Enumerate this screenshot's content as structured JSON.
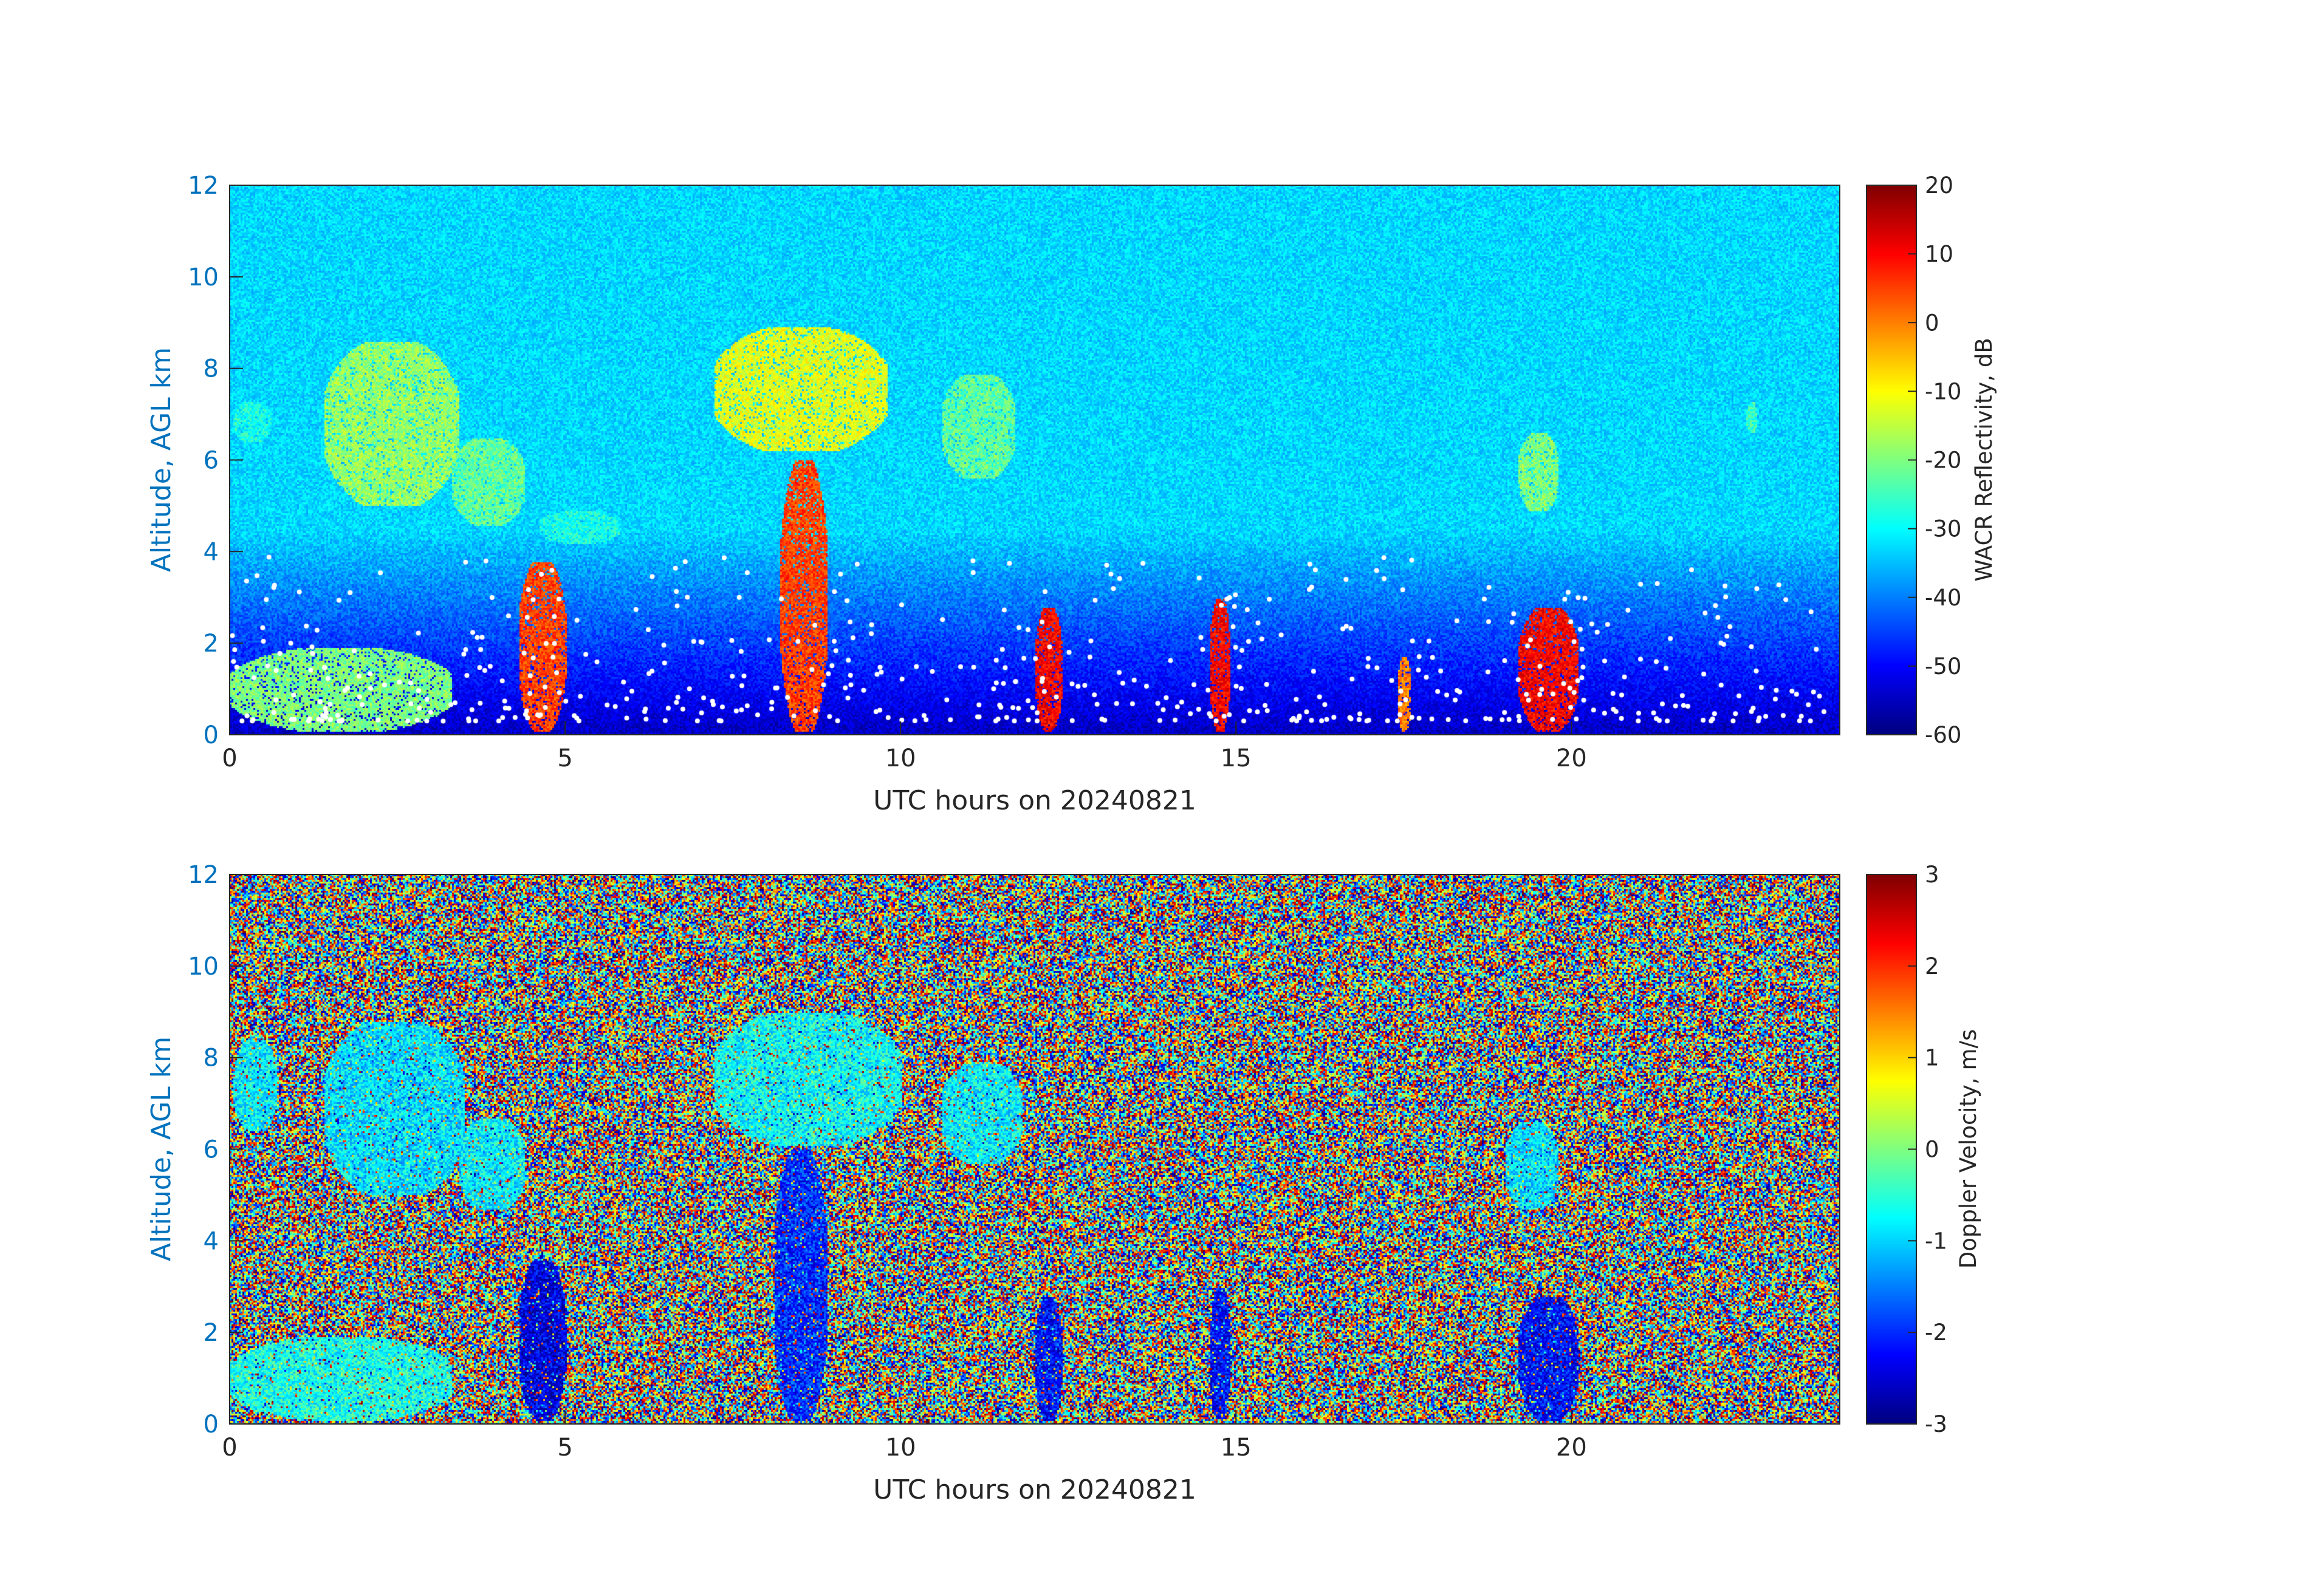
{
  "chart_data": [
    {
      "type": "heatmap",
      "name": "reflectivity",
      "xlabel": "UTC hours on 20240821",
      "ylabel": "Altitude, AGL km",
      "colorbar_label": "WACR Reflectivity, dB",
      "xlim": [
        0,
        24
      ],
      "ylim": [
        0,
        12
      ],
      "clim": [
        -60,
        20
      ],
      "colormap": "jet",
      "x_ticks": [
        0,
        5,
        10,
        15,
        20
      ],
      "y_ticks": [
        0,
        2,
        4,
        6,
        8,
        10,
        12
      ],
      "colorbar_ticks": [
        20,
        10,
        0,
        -10,
        -20,
        -30,
        -40,
        -50,
        -60
      ],
      "background": "noise increasing from about -55 dB near the surface to about -33 dB aloft",
      "white_markers": "cloud base / lidar detections below about 4 km",
      "features": [
        {
          "x": [
            0.05,
            0.6
          ],
          "y": [
            6.4,
            7.3
          ],
          "value": -28
        },
        {
          "x": [
            1.4,
            3.4
          ],
          "y": [
            5.0,
            8.6
          ],
          "value": -18
        },
        {
          "x": [
            3.3,
            4.4
          ],
          "y": [
            4.6,
            6.5
          ],
          "value": -22
        },
        {
          "x": [
            4.6,
            5.8
          ],
          "y": [
            4.2,
            4.9
          ],
          "value": -28
        },
        {
          "x": [
            7.2,
            9.8
          ],
          "y": [
            6.2,
            8.9
          ],
          "value": -12
        },
        {
          "x": [
            10.6,
            11.7
          ],
          "y": [
            5.6,
            7.9
          ],
          "value": -22
        },
        {
          "x": [
            19.2,
            19.8
          ],
          "y": [
            4.9,
            6.6
          ],
          "value": -20
        },
        {
          "x": [
            22.6,
            22.75
          ],
          "y": [
            6.6,
            7.3
          ],
          "value": -25
        },
        {
          "x": [
            0.0,
            3.3
          ],
          "y": [
            0.1,
            1.9
          ],
          "value": -20
        },
        {
          "x": [
            4.3,
            5.0
          ],
          "y": [
            0.1,
            3.8
          ],
          "value": 5
        },
        {
          "x": [
            8.2,
            8.9
          ],
          "y": [
            0.1,
            6.0
          ],
          "value": 5
        },
        {
          "x": [
            12.0,
            12.4
          ],
          "y": [
            0.1,
            2.8
          ],
          "value": 10
        },
        {
          "x": [
            14.6,
            14.9
          ],
          "y": [
            0.1,
            3.0
          ],
          "value": 10
        },
        {
          "x": [
            17.4,
            17.6
          ],
          "y": [
            0.1,
            1.7
          ],
          "value": 0
        },
        {
          "x": [
            19.2,
            20.1
          ],
          "y": [
            0.1,
            2.8
          ],
          "value": 10
        }
      ]
    },
    {
      "type": "heatmap",
      "name": "doppler",
      "xlabel": "UTC hours on 20240821",
      "ylabel": "Altitude, AGL km",
      "colorbar_label": "Doppler Velocity, m/s",
      "xlim": [
        0,
        24
      ],
      "ylim": [
        0,
        12
      ],
      "clim": [
        -3,
        3
      ],
      "colormap": "jet",
      "x_ticks": [
        0,
        5,
        10,
        15,
        20
      ],
      "y_ticks": [
        0,
        2,
        4,
        6,
        8,
        10,
        12
      ],
      "colorbar_ticks": [
        3,
        2,
        1,
        0,
        -1,
        -2,
        -3
      ],
      "background": "random noise spanning -3 to 3 m/s",
      "features": [
        {
          "x": [
            0.05,
            0.7
          ],
          "y": [
            6.4,
            8.4
          ],
          "value": -0.8
        },
        {
          "x": [
            1.4,
            3.5
          ],
          "y": [
            5.0,
            8.8
          ],
          "value": -0.9
        },
        {
          "x": [
            3.4,
            4.4
          ],
          "y": [
            4.7,
            6.7
          ],
          "value": -0.8
        },
        {
          "x": [
            7.2,
            10.0
          ],
          "y": [
            6.1,
            9.0
          ],
          "value": -0.7
        },
        {
          "x": [
            10.6,
            11.8
          ],
          "y": [
            5.7,
            7.9
          ],
          "value": -0.8
        },
        {
          "x": [
            19.0,
            19.8
          ],
          "y": [
            4.7,
            6.6
          ],
          "value": -0.9
        },
        {
          "x": [
            0.0,
            3.3
          ],
          "y": [
            0.1,
            1.9
          ],
          "value": -0.6
        },
        {
          "x": [
            4.3,
            5.0
          ],
          "y": [
            0.1,
            3.6
          ],
          "value": -2.4
        },
        {
          "x": [
            8.1,
            8.9
          ],
          "y": [
            0.1,
            6.0
          ],
          "value": -2.0
        },
        {
          "x": [
            12.0,
            12.4
          ],
          "y": [
            0.1,
            2.8
          ],
          "value": -2.2
        },
        {
          "x": [
            14.6,
            14.9
          ],
          "y": [
            0.1,
            3.0
          ],
          "value": -2.2
        },
        {
          "x": [
            19.2,
            20.1
          ],
          "y": [
            0.1,
            2.8
          ],
          "value": -2.2
        }
      ]
    }
  ]
}
